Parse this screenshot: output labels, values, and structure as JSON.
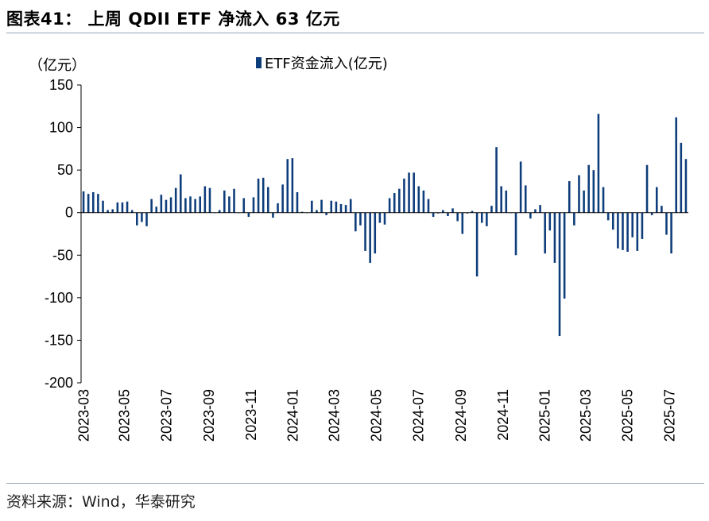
{
  "figure": {
    "title": "图表41：  上周 QDII ETF 净流入 63 亿元",
    "source": "资料来源：Wind，华泰研究",
    "unit_label": "（亿元）"
  },
  "colors": {
    "bar": "#0d3d7a",
    "axis": "#000000",
    "rule": "#8fa3b8"
  },
  "chart_data": {
    "type": "bar",
    "legend": {
      "entries": [
        "ETF资金流入(亿元)"
      ],
      "placement": "top-center"
    },
    "ylabel": "（亿元）",
    "ylim": [
      -200,
      150
    ],
    "yticks": [
      150,
      100,
      50,
      0,
      -50,
      -100,
      -150,
      -200
    ],
    "grid": false,
    "x_start": "2023-03-03",
    "x_end": "2025-07-25",
    "xtick_labels": [
      "2023-03",
      "2023-05",
      "2023-07",
      "2023-09",
      "2023-11",
      "2024-01",
      "2024-03",
      "2024-05",
      "2024-07",
      "2024-09",
      "2024-11",
      "2025-01",
      "2025-03",
      "2025-05",
      "2025-07"
    ],
    "series": [
      {
        "name": "ETF资金流入(亿元)",
        "values": [
          25,
          22,
          24,
          22,
          14,
          3,
          4,
          12,
          12,
          13,
          3,
          -15,
          -11,
          -16,
          16,
          7,
          21,
          15,
          18,
          29,
          45,
          17,
          19,
          16,
          19,
          31,
          29,
          0,
          3,
          26,
          19,
          28,
          0,
          17,
          -5,
          18,
          40,
          41,
          30,
          -6,
          11,
          33,
          63,
          64,
          24,
          1,
          0,
          14,
          3,
          15,
          -3,
          14,
          13,
          10,
          9,
          16,
          -22,
          -15,
          -45,
          -59,
          -48,
          -12,
          -14,
          17,
          23,
          28,
          40,
          47,
          47,
          31,
          26,
          16,
          -5,
          -1,
          3,
          -4,
          5,
          -10,
          -25,
          -1,
          2,
          -75,
          -12,
          -16,
          8,
          77,
          31,
          26,
          0,
          -50,
          60,
          32,
          -7,
          4,
          9,
          -48,
          -21,
          -59,
          -145,
          -101,
          37,
          -15,
          44,
          26,
          56,
          50,
          116,
          30,
          -9,
          -20,
          -42,
          -44,
          -46,
          -29,
          -45,
          -31,
          56,
          -3,
          30,
          8,
          -26,
          -48,
          112,
          82,
          63
        ]
      }
    ]
  }
}
